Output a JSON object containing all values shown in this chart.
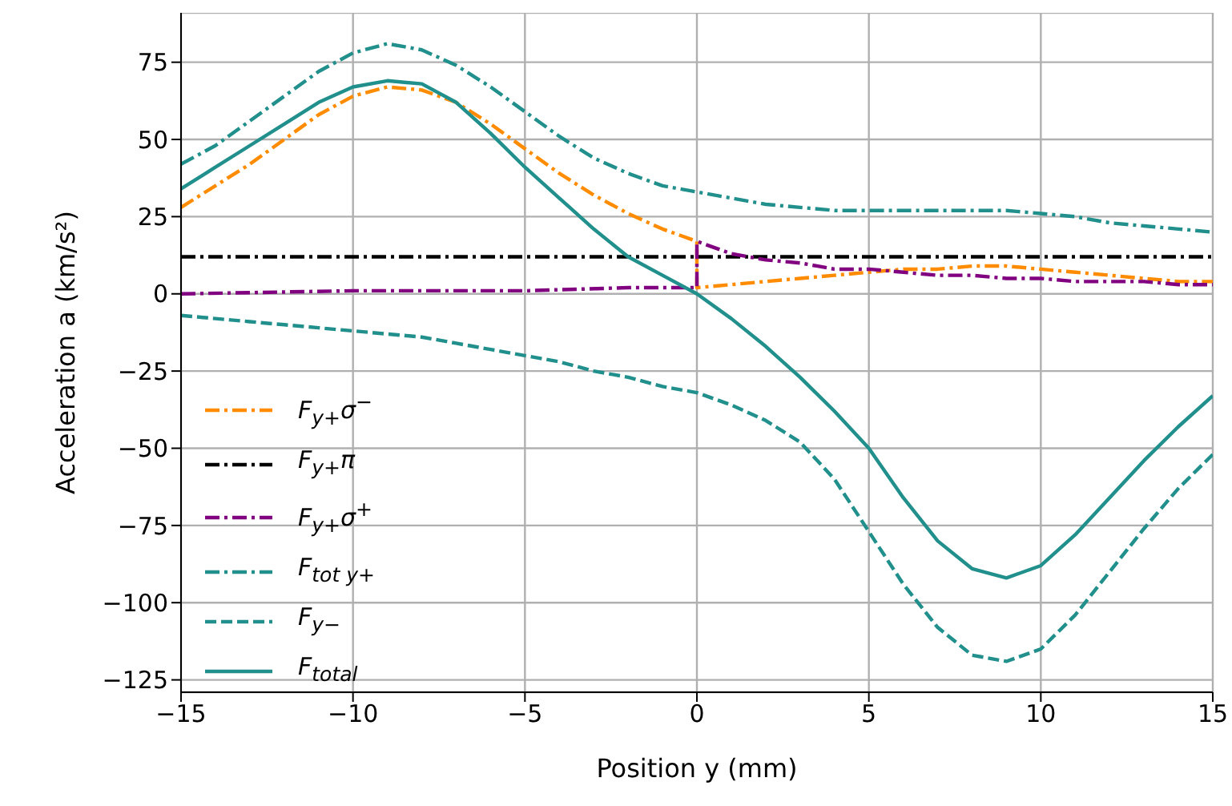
{
  "chart_data": {
    "type": "line",
    "xlabel": "Position y (mm)",
    "ylabel": "Acceleration a (km/s²)",
    "xlim": [
      -15,
      15
    ],
    "ylim": [
      -129,
      91
    ],
    "xticks": [
      -15,
      -10,
      -5,
      0,
      5,
      10,
      15
    ],
    "yticks": [
      -125,
      -100,
      -75,
      -50,
      -25,
      0,
      25,
      50,
      75
    ],
    "grid": true,
    "legend": "lower left",
    "marker": "none",
    "series": [
      {
        "name": "F$_{y+}$σ$^{−}$",
        "color": "#ff8c00",
        "line_style": "dashdot",
        "x": [
          -15,
          -14,
          -13,
          -12,
          -11,
          -10,
          -9,
          -8,
          -7,
          -6,
          -5,
          -4,
          -3,
          -2,
          -1,
          0,
          0,
          1,
          2,
          3,
          4,
          5,
          6,
          7,
          8,
          9,
          10,
          11,
          12,
          13,
          14,
          15
        ],
        "values": [
          28,
          35,
          42,
          50,
          58,
          64,
          67,
          66,
          62,
          55,
          47,
          39,
          32,
          26,
          21,
          17,
          2,
          3,
          4,
          5,
          6,
          7,
          8,
          8,
          9,
          9,
          8,
          7,
          6,
          5,
          4,
          4
        ]
      },
      {
        "name": "F$_{y+}$π",
        "color": "#000000",
        "line_style": "dashdot",
        "x": [
          -15,
          15
        ],
        "values": [
          12,
          12
        ]
      },
      {
        "name": "F$_{y+}$σ$^{+}$",
        "color": "#800080",
        "line_style": "dashdot",
        "x": [
          -15,
          -10,
          -5,
          -2,
          0,
          0,
          1,
          2,
          3,
          4,
          5,
          6,
          7,
          8,
          9,
          10,
          11,
          12,
          13,
          14,
          15
        ],
        "values": [
          0,
          1,
          1,
          2,
          2,
          17,
          13,
          11,
          10,
          8,
          8,
          7,
          6,
          6,
          5,
          5,
          4,
          4,
          4,
          3,
          3
        ]
      },
      {
        "name": "F$_{tot y+}$",
        "color": "#21908d",
        "line_style": "dashdot",
        "x": [
          -15,
          -14,
          -13,
          -12,
          -11,
          -10,
          -9,
          -8,
          -7,
          -6,
          -5,
          -4,
          -3,
          -2,
          -1,
          0,
          1,
          2,
          3,
          4,
          5,
          6,
          7,
          8,
          9,
          10,
          11,
          12,
          13,
          14,
          15
        ],
        "values": [
          42,
          48,
          56,
          64,
          72,
          78,
          81,
          79,
          74,
          67,
          59,
          51,
          44,
          39,
          35,
          33,
          31,
          29,
          28,
          27,
          27,
          27,
          27,
          27,
          27,
          26,
          25,
          23,
          22,
          21,
          20
        ]
      },
      {
        "name": "F$_{y−}$",
        "color": "#21908d",
        "line_style": "dashed",
        "x": [
          -15,
          -14,
          -13,
          -12,
          -11,
          -10,
          -9,
          -8,
          -7,
          -6,
          -5,
          -4,
          -3,
          -2,
          -1,
          0,
          1,
          2,
          3,
          4,
          5,
          6,
          7,
          8,
          9,
          10,
          11,
          12,
          13,
          14,
          15
        ],
        "values": [
          -7,
          -8,
          -9,
          -10,
          -11,
          -12,
          -13,
          -14,
          -16,
          -18,
          -20,
          -22,
          -25,
          -27,
          -30,
          -32,
          -36,
          -41,
          -48,
          -60,
          -77,
          -94,
          -108,
          -117,
          -119,
          -115,
          -104,
          -90,
          -76,
          -63,
          -52
        ]
      },
      {
        "name": "F$_{total}$",
        "color": "#21908d",
        "line_style": "solid",
        "x": [
          -15,
          -14,
          -13,
          -12,
          -11,
          -10,
          -9,
          -8,
          -7,
          -6,
          -5,
          -4,
          -3,
          -2,
          -1,
          0,
          1,
          2,
          3,
          4,
          5,
          6,
          7,
          8,
          9,
          10,
          11,
          12,
          13,
          14,
          15
        ],
        "values": [
          34,
          41,
          48,
          55,
          62,
          67,
          69,
          68,
          62,
          52,
          41,
          31,
          21,
          12,
          6,
          0,
          -8,
          -17,
          -27,
          -38,
          -50,
          -66,
          -80,
          -89,
          -92,
          -88,
          -78,
          -66,
          -54,
          -43,
          -33
        ]
      }
    ]
  }
}
